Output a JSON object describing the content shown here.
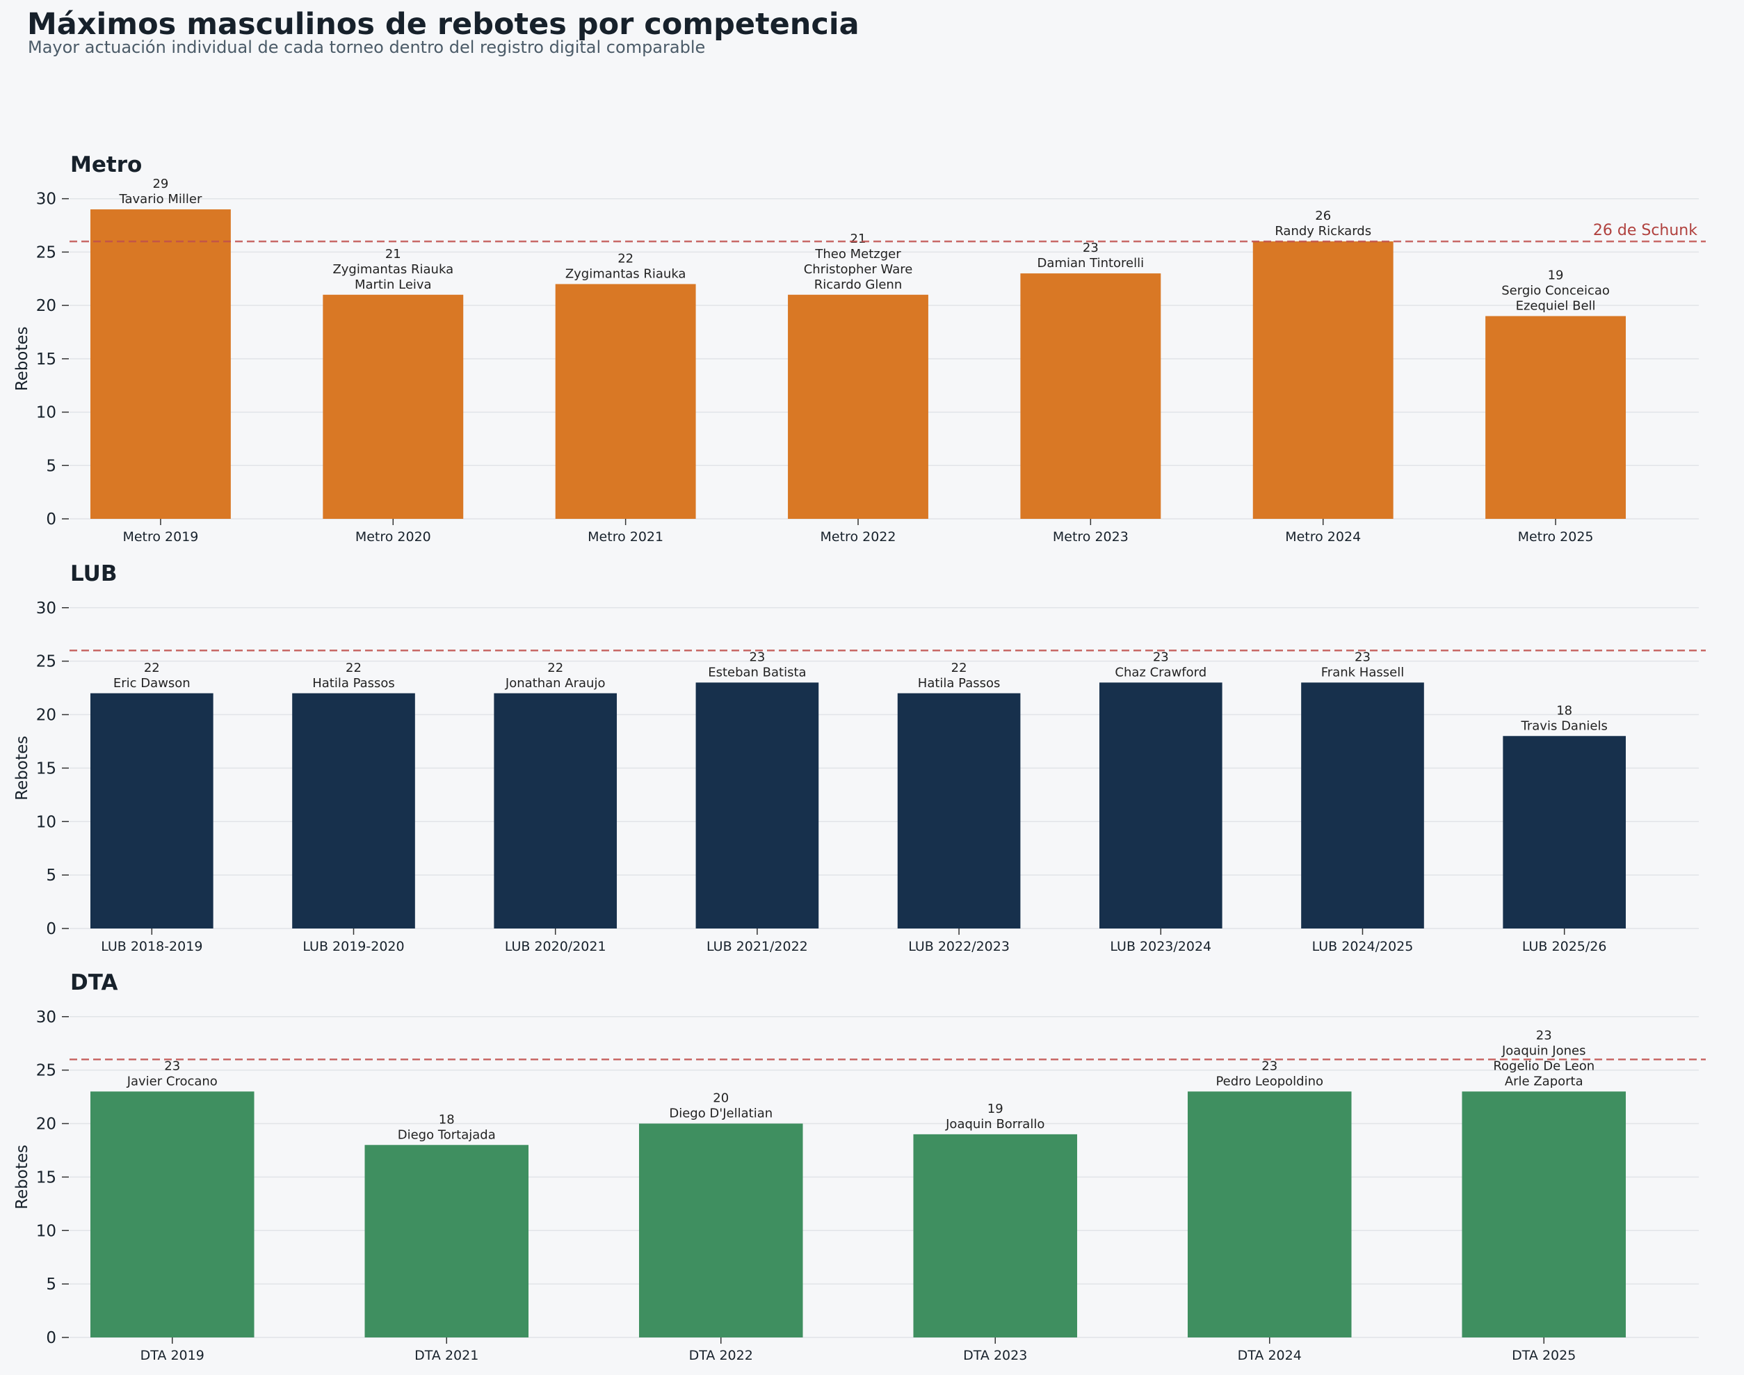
{
  "title": "Máximos masculinos de rebotes por competencia",
  "subtitle": "Mayor actuación individual de cada torneo dentro del registro digital comparable",
  "colors": {
    "background": "#f6f7f9",
    "text": "#17212b",
    "grid": "#e1e4e8",
    "reference_line": "#c0504d",
    "reference_label": "#b0413e",
    "label_text": "#222222"
  },
  "reference": {
    "value": 26,
    "label": "26 de Schunk"
  },
  "chart_data": [
    {
      "type": "bar",
      "title": "Metro",
      "ylabel": "Rebotes",
      "xlabel": "",
      "ylim": [
        0,
        30
      ],
      "yticks": [
        0,
        5,
        10,
        15,
        20,
        25,
        30
      ],
      "grid": true,
      "color": "#d97825",
      "categories": [
        "Metro 2019",
        "Metro 2020",
        "Metro 2021",
        "Metro 2022",
        "Metro 2023",
        "Metro 2024",
        "Metro 2025"
      ],
      "values": [
        29,
        21,
        22,
        21,
        23,
        26,
        19
      ],
      "players": [
        [
          "Tavario Miller"
        ],
        [
          "Zygimantas Riauka",
          "Martin Leiva"
        ],
        [
          "Zygimantas Riauka"
        ],
        [
          "Theo Metzger",
          "Christopher Ware",
          "Ricardo Glenn"
        ],
        [
          "Damian Tintorelli"
        ],
        [
          "Randy Rickards"
        ],
        [
          "Sergio Conceicao",
          "Ezequiel Bell"
        ]
      ],
      "show_reference_label": true
    },
    {
      "type": "bar",
      "title": "LUB",
      "ylabel": "Rebotes",
      "xlabel": "",
      "ylim": [
        0,
        30
      ],
      "yticks": [
        0,
        5,
        10,
        15,
        20,
        25,
        30
      ],
      "grid": true,
      "color": "#17304c",
      "categories": [
        "LUB 2018-2019",
        "LUB 2019-2020",
        "LUB 2020/2021",
        "LUB 2021/2022",
        "LUB 2022/2023",
        "LUB 2023/2024",
        "LUB 2024/2025",
        "LUB 2025/26"
      ],
      "values": [
        22,
        22,
        22,
        23,
        22,
        23,
        23,
        18
      ],
      "players": [
        [
          "Eric Dawson"
        ],
        [
          "Hatila Passos"
        ],
        [
          "Jonathan Araujo"
        ],
        [
          "Esteban Batista"
        ],
        [
          "Hatila Passos"
        ],
        [
          "Chaz Crawford"
        ],
        [
          "Frank Hassell"
        ],
        [
          "Travis Daniels"
        ]
      ],
      "show_reference_label": false
    },
    {
      "type": "bar",
      "title": "DTA",
      "ylabel": "Rebotes",
      "xlabel": "",
      "ylim": [
        0,
        30
      ],
      "yticks": [
        0,
        5,
        10,
        15,
        20,
        25,
        30
      ],
      "grid": true,
      "color": "#3f8f60",
      "categories": [
        "DTA 2019",
        "DTA 2021",
        "DTA 2022",
        "DTA 2023",
        "DTA 2024",
        "DTA 2025"
      ],
      "values": [
        23,
        18,
        20,
        19,
        23,
        23
      ],
      "players": [
        [
          "Javier Crocano"
        ],
        [
          "Diego Tortajada"
        ],
        [
          "Diego D'Jellatian"
        ],
        [
          "Joaquin Borrallo"
        ],
        [
          "Pedro Leopoldino"
        ],
        [
          "Joaquin Jones",
          "Rogelio De Leon",
          "Arle Zaporta"
        ]
      ],
      "show_reference_label": false
    }
  ]
}
